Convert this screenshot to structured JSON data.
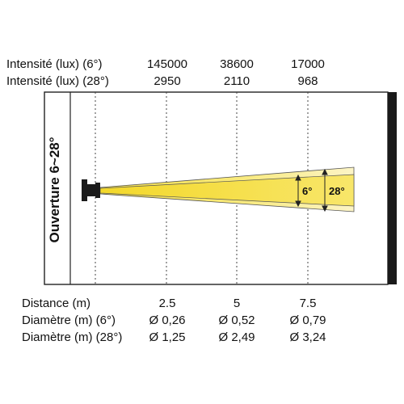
{
  "header": {
    "intensity_6": {
      "label": "Intensité (lux) (6°)",
      "values": [
        "145000",
        "38600",
        "17000"
      ]
    },
    "intensity_28": {
      "label": "Intensité (lux) (28°)",
      "values": [
        "2950",
        "2110",
        "968"
      ]
    }
  },
  "diagram": {
    "vertical_label": "Ouverture 6~28°",
    "narrow_angle_label": "6°",
    "wide_angle_label": "28°",
    "colors": {
      "beam_yellow": "#f7e24a",
      "beam_light": "#fbf1b4",
      "frame": "#222222",
      "right_bar": "#1a1a1a",
      "dotted_line": "#444444"
    }
  },
  "footer": {
    "distance": {
      "label": "Distance (m)",
      "values": [
        "2.5",
        "5",
        "7.5"
      ]
    },
    "diameter_6": {
      "label": "Diamètre (m) (6°)",
      "values": [
        "Ø 0,26",
        "Ø 0,52",
        "Ø 0,79"
      ]
    },
    "diameter_28": {
      "label": "Diamètre (m) (28°)",
      "values": [
        "Ø 1,25",
        "Ø 2,49",
        "Ø 3,24"
      ]
    }
  }
}
